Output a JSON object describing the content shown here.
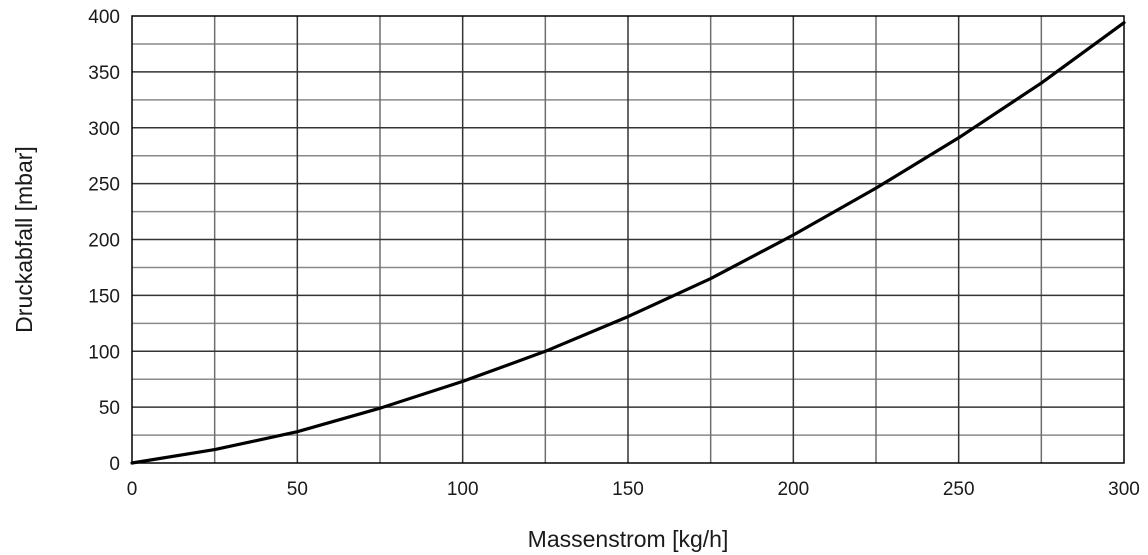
{
  "chart_data": {
    "type": "line",
    "title": "",
    "xlabel": "Massenstrom [kg/h]",
    "ylabel": "Druckabfall [mbar]",
    "xlim": [
      0,
      300
    ],
    "ylim": [
      0,
      400
    ],
    "x_ticks": [
      0,
      50,
      100,
      150,
      200,
      250,
      300
    ],
    "y_ticks": [
      0,
      50,
      100,
      150,
      200,
      250,
      300,
      350,
      400
    ],
    "x_minor_step": 25,
    "y_minor_step": 25,
    "grid": true,
    "legend": "none",
    "line_color": "#000000",
    "series": [
      {
        "x": [
          0,
          25,
          50,
          75,
          100,
          125,
          150,
          175,
          200,
          225,
          250,
          275,
          300
        ],
        "y": [
          0,
          12,
          28,
          49,
          73,
          100,
          131,
          165,
          204,
          246,
          291,
          340,
          394
        ]
      }
    ]
  }
}
